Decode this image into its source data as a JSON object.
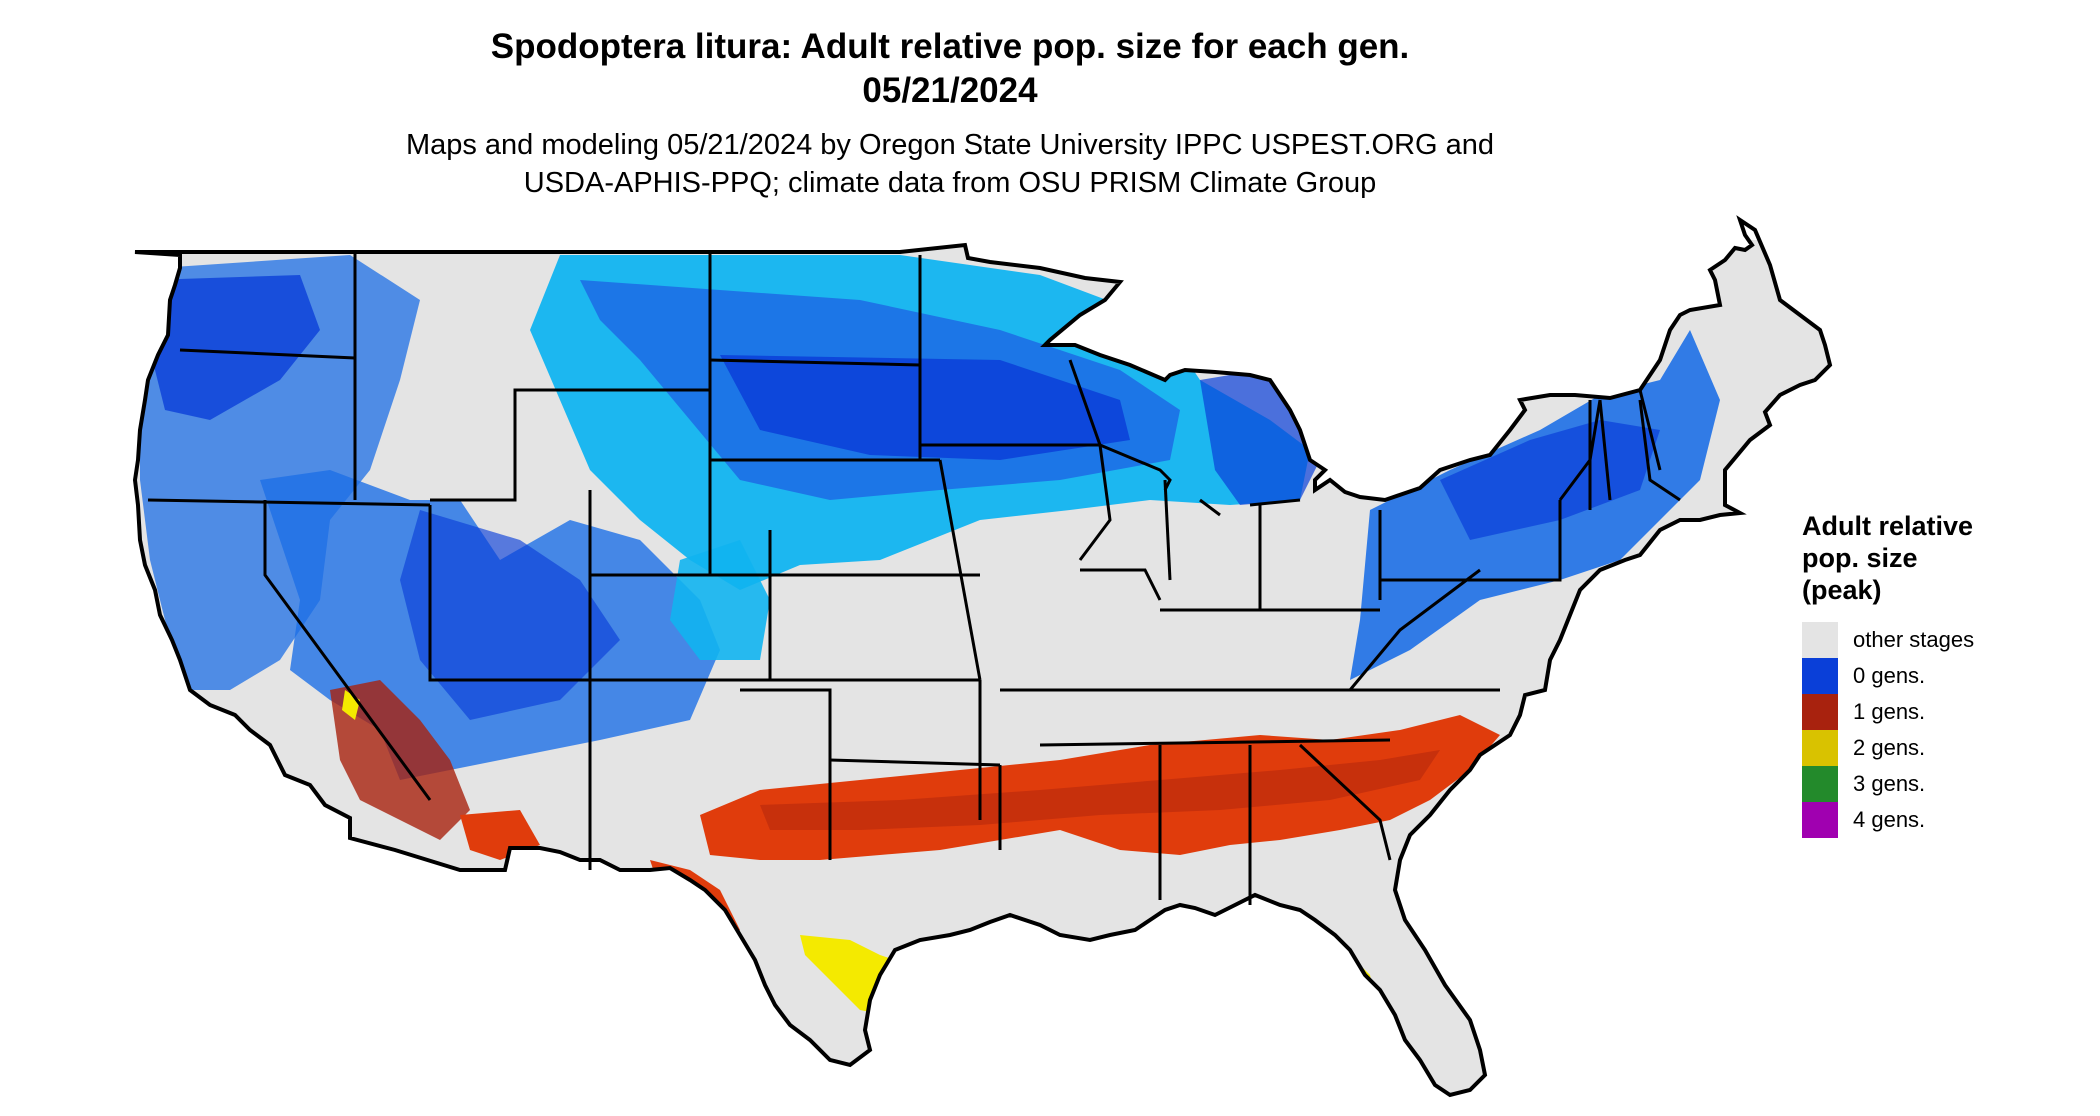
{
  "title": {
    "line1": "Spodoptera litura: Adult relative pop. size for each gen.",
    "line2": "05/21/2024"
  },
  "subtitle": {
    "line1": "Maps and modeling 05/21/2024 by Oregon State University IPPC USPEST.ORG and",
    "line2": "USDA-APHIS-PPQ; climate data from OSU PRISM Climate Group"
  },
  "legend": {
    "title_line1": "Adult relative",
    "title_line2": "pop. size",
    "title_line3": "(peak)",
    "items": [
      {
        "label": "other stages",
        "color": "#e4e4e4"
      },
      {
        "label": "0 gens.",
        "color": "#0a3fd8"
      },
      {
        "label": "1 gens.",
        "color": "#a8220e"
      },
      {
        "label": "2 gens.",
        "color": "#d9c200"
      },
      {
        "label": "3 gens.",
        "color": "#238a2b"
      },
      {
        "label": "4 gens.",
        "color": "#a000b0"
      }
    ]
  },
  "colors": {
    "land": "#e4e4e4",
    "gen0_dark": "#0a3fd8",
    "gen0_mid": "#1d6fe6",
    "gen0_light": "#11b4f0",
    "gen1_dark": "#a8220e",
    "gen1_light": "#e03c0c",
    "gen2": "#f4ea00",
    "gen3": "#3cc24a",
    "border": "#000000"
  }
}
